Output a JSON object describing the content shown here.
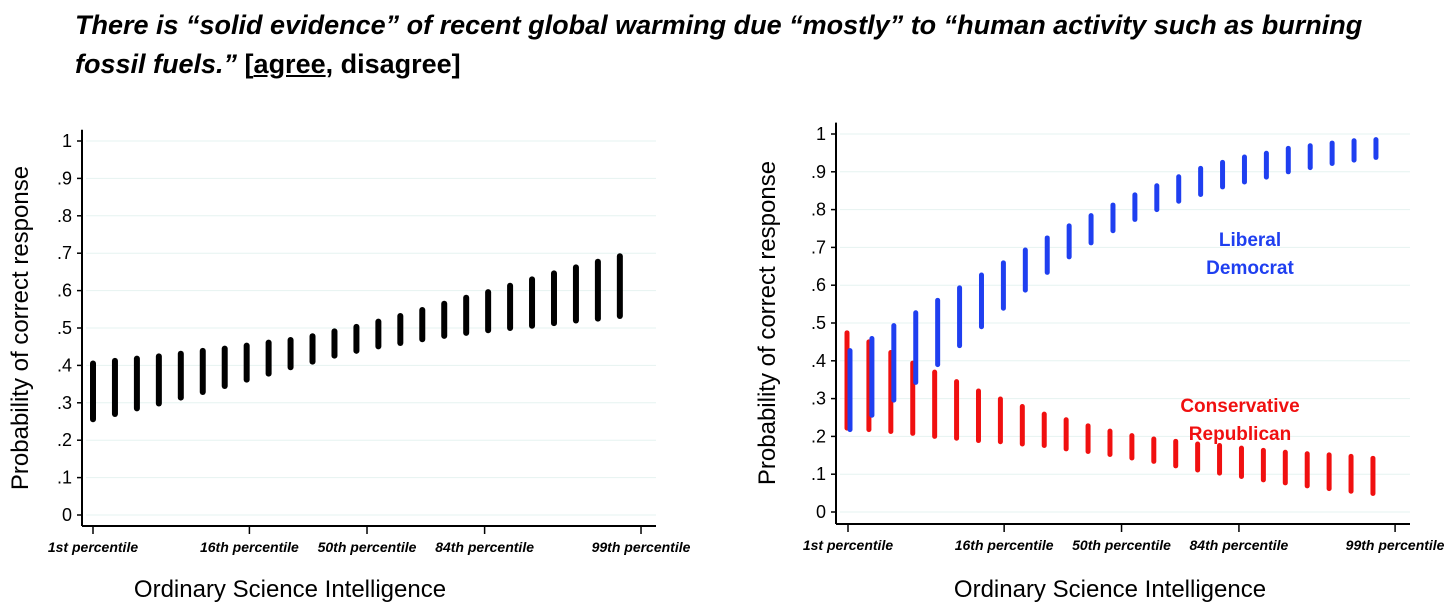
{
  "title": {
    "statement": "There is “solid evidence” of recent global warming due “mostly” to “human activity such as burning fossil fuels.”",
    "open_bracket": " [",
    "correct_option": "agree",
    "rest_options": ", disagree]"
  },
  "colors": {
    "overall": "#000000",
    "liberal_democrat": "#1f3ff0",
    "conservative_republican": "#f01010",
    "gridline": "#e6f3f1"
  },
  "chart_data": [
    {
      "type": "range-bar",
      "xlabel": "Ordinary Science Intelligence",
      "ylabel": "Probability of correct response",
      "ylim": [
        0,
        1
      ],
      "yticks": [
        {
          "v": 0,
          "label": "0"
        },
        {
          "v": 0.1,
          "label": ".1"
        },
        {
          "v": 0.2,
          "label": ".2"
        },
        {
          "v": 0.3,
          "label": ".3"
        },
        {
          "v": 0.4,
          "label": ".4"
        },
        {
          "v": 0.5,
          "label": ".5"
        },
        {
          "v": 0.6,
          "label": ".6"
        },
        {
          "v": 0.7,
          "label": ".7"
        },
        {
          "v": 0.8,
          "label": ".8"
        },
        {
          "v": 0.9,
          "label": ".9"
        },
        {
          "v": 1,
          "label": "1"
        }
      ],
      "xticks": [
        {
          "v": -2.33,
          "label": "1st percentile"
        },
        {
          "v": -1,
          "label": "16th percentile"
        },
        {
          "v": 0,
          "label": "50th percentile"
        },
        {
          "v": 1,
          "label": "84th percentile"
        },
        {
          "v": 2.33,
          "label": "99th percentile"
        }
      ],
      "grid": true,
      "series": [
        {
          "color_key": "overall",
          "low": [
            0.256,
            0.27,
            0.285,
            0.298,
            0.314,
            0.329,
            0.345,
            0.362,
            0.378,
            0.395,
            0.41,
            0.426,
            0.439,
            0.451,
            0.46,
            0.47,
            0.479,
            0.487,
            0.494,
            0.5,
            0.506,
            0.513,
            0.52,
            0.525,
            0.532
          ],
          "high": [
            0.405,
            0.412,
            0.418,
            0.424,
            0.431,
            0.439,
            0.445,
            0.453,
            0.461,
            0.468,
            0.478,
            0.491,
            0.503,
            0.517,
            0.532,
            0.548,
            0.565,
            0.581,
            0.596,
            0.613,
            0.63,
            0.646,
            0.662,
            0.677,
            0.692
          ]
        }
      ]
    },
    {
      "type": "range-bar",
      "xlabel": "Ordinary Science Intelligence",
      "ylabel": "Probability of correct response",
      "ylim": [
        0,
        1
      ],
      "yticks": [
        {
          "v": 0,
          "label": "0"
        },
        {
          "v": 0.1,
          "label": ".1"
        },
        {
          "v": 0.2,
          "label": ".2"
        },
        {
          "v": 0.3,
          "label": ".3"
        },
        {
          "v": 0.4,
          "label": ".4"
        },
        {
          "v": 0.5,
          "label": ".5"
        },
        {
          "v": 0.6,
          "label": ".6"
        },
        {
          "v": 0.7,
          "label": ".7"
        },
        {
          "v": 0.8,
          "label": ".8"
        },
        {
          "v": 0.9,
          "label": ".9"
        },
        {
          "v": 1,
          "label": "1"
        }
      ],
      "xticks": [
        {
          "v": -2.33,
          "label": "1st percentile"
        },
        {
          "v": -1,
          "label": "16th percentile"
        },
        {
          "v": 0,
          "label": "50th percentile"
        },
        {
          "v": 1,
          "label": "84th percentile"
        },
        {
          "v": 2.33,
          "label": "99th percentile"
        }
      ],
      "grid": true,
      "series": [
        {
          "name_lines": [
            "Conservative",
            "Republican"
          ],
          "color_key": "conservative_republican",
          "low": [
            0.222,
            0.218,
            0.213,
            0.208,
            0.2,
            0.195,
            0.189,
            0.186,
            0.18,
            0.176,
            0.167,
            0.16,
            0.152,
            0.143,
            0.134,
            0.122,
            0.111,
            0.103,
            0.094,
            0.085,
            0.077,
            0.069,
            0.062,
            0.055,
            0.049
          ],
          "high": [
            0.474,
            0.45,
            0.422,
            0.394,
            0.37,
            0.345,
            0.32,
            0.299,
            0.279,
            0.259,
            0.244,
            0.228,
            0.214,
            0.202,
            0.193,
            0.187,
            0.18,
            0.176,
            0.169,
            0.163,
            0.158,
            0.154,
            0.151,
            0.147,
            0.142
          ]
        },
        {
          "name_lines": [
            "Liberal",
            "Democrat"
          ],
          "color_key": "liberal_democrat",
          "low": [
            0.218,
            0.256,
            0.296,
            0.343,
            0.39,
            0.44,
            0.49,
            0.539,
            0.587,
            0.634,
            0.675,
            0.712,
            0.744,
            0.774,
            0.8,
            0.822,
            0.84,
            0.86,
            0.873,
            0.886,
            0.9,
            0.911,
            0.922,
            0.931,
            0.938
          ],
          "high": [
            0.427,
            0.459,
            0.493,
            0.527,
            0.56,
            0.593,
            0.627,
            0.659,
            0.693,
            0.725,
            0.757,
            0.784,
            0.812,
            0.839,
            0.863,
            0.887,
            0.909,
            0.925,
            0.939,
            0.949,
            0.962,
            0.969,
            0.976,
            0.982,
            0.985
          ]
        }
      ]
    }
  ]
}
